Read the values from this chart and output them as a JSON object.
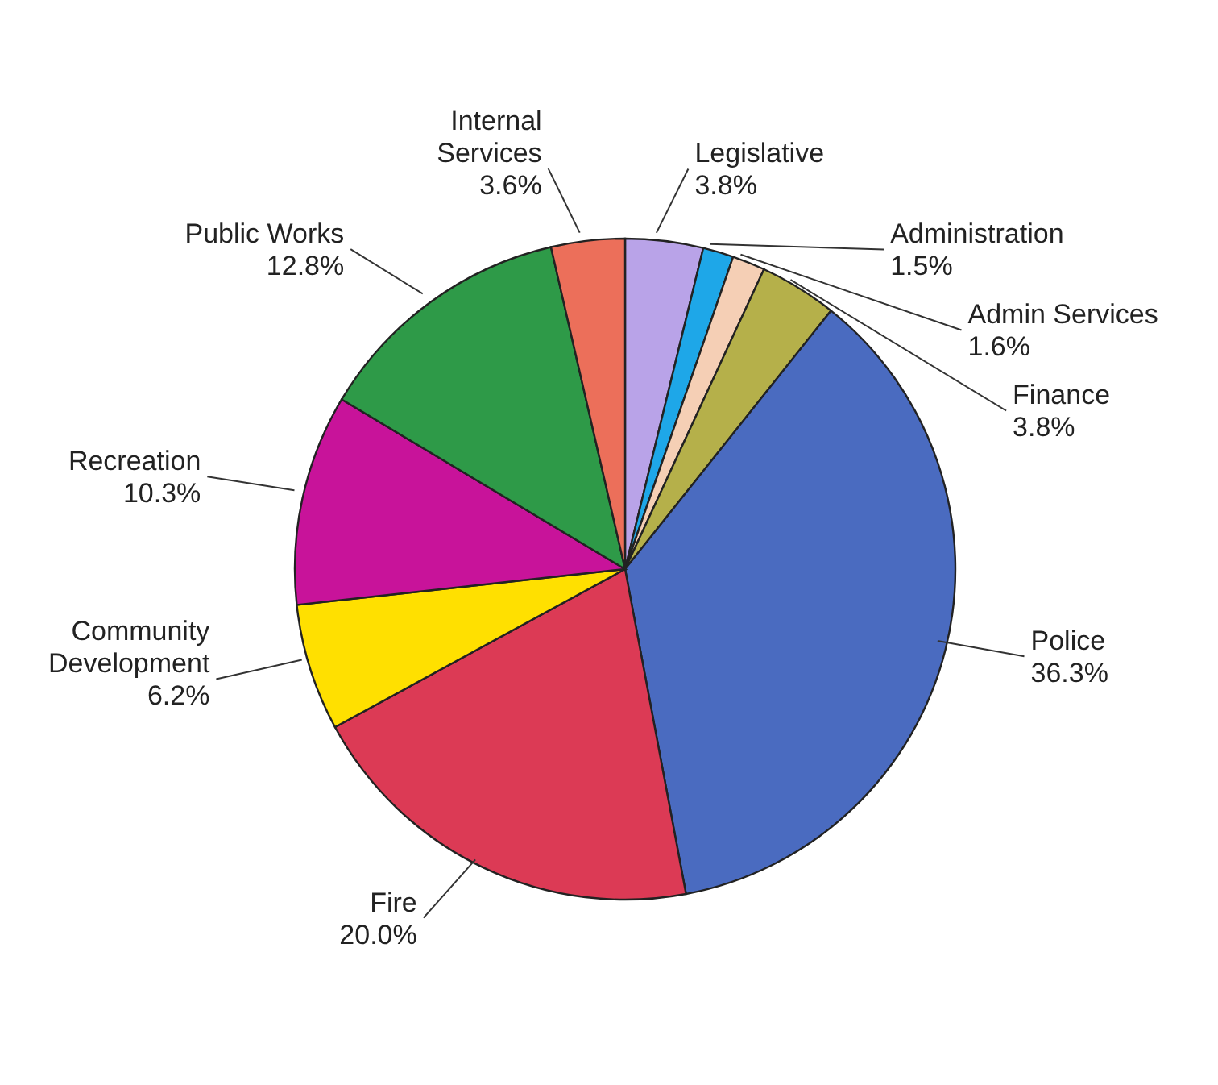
{
  "chart_data": {
    "type": "pie",
    "categories": [
      "Legislative",
      "Administration",
      "Admin Services",
      "Finance",
      "Police",
      "Fire",
      "Community Development",
      "Recreation",
      "Public Works",
      "Internal Services"
    ],
    "values": [
      3.8,
      1.5,
      1.6,
      3.8,
      36.3,
      20.0,
      6.2,
      10.3,
      12.8,
      3.6
    ],
    "value_labels": [
      "3.8%",
      "1.5%",
      "1.6%",
      "3.8%",
      "36.3%",
      "20.0%",
      "6.2%",
      "10.3%",
      "12.8%",
      "3.6%"
    ],
    "colors": [
      "#b9a3e8",
      "#1ea7e8",
      "#f5cfb5",
      "#b5b04a",
      "#4a6bc0",
      "#dc3a55",
      "#ffe000",
      "#c8139a",
      "#2e9a48",
      "#ec6f5a"
    ],
    "legend": false
  }
}
